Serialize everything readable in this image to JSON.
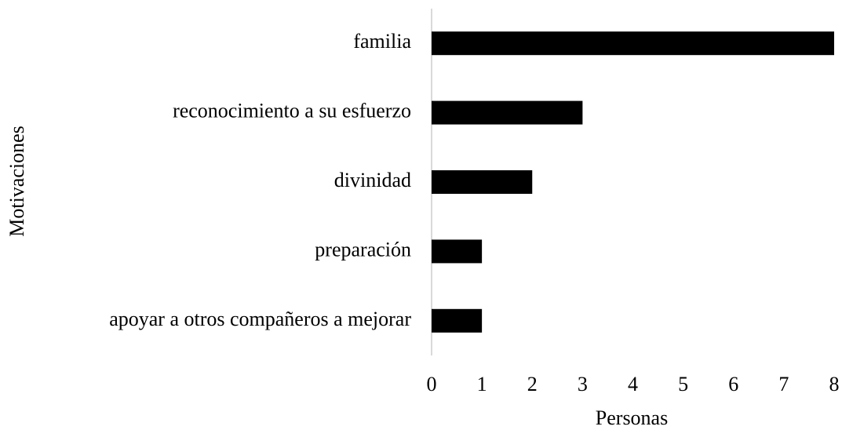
{
  "chart_data": {
    "type": "bar",
    "orientation": "horizontal",
    "xlabel": "Personas",
    "ylabel": "Motivaciones",
    "categories": [
      "familia",
      "reconocimiento a su esfuerzo",
      "divinidad",
      "preparación",
      "apoyar a otros compañeros a mejorar"
    ],
    "values": [
      8,
      3,
      2,
      1,
      1
    ],
    "color": "#000000",
    "xlim": [
      0,
      8
    ],
    "xticks": [
      0,
      1,
      2,
      3,
      4,
      5,
      6,
      7,
      8
    ],
    "grid": false
  }
}
